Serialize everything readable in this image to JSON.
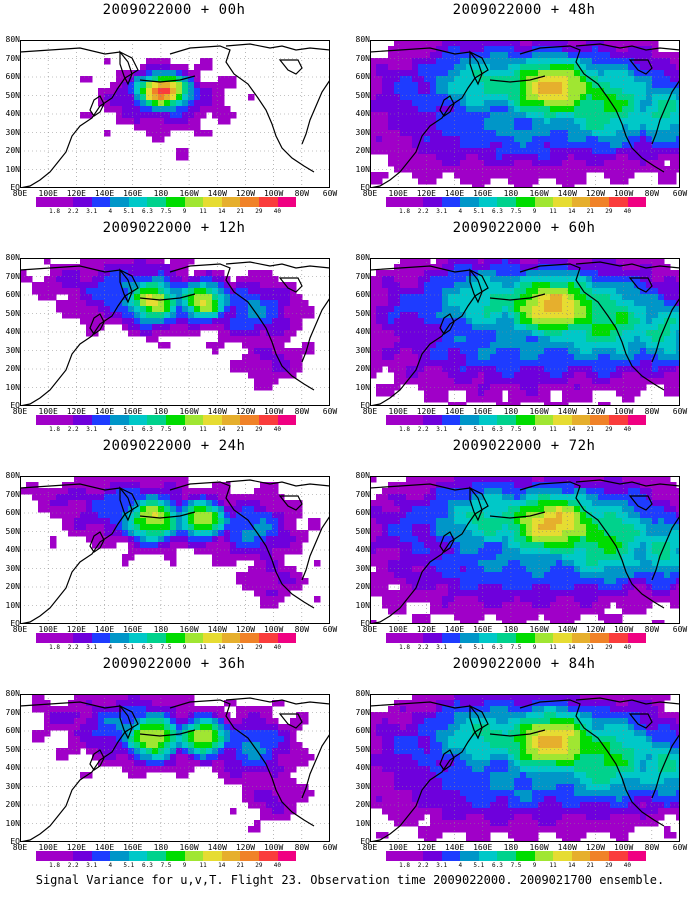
{
  "caption": "Signal Variance for u,v,T. Flight 23. Observation time 2009022000. 2009021700 ensemble.",
  "y_labels": [
    "80N",
    "70N",
    "60N",
    "50N",
    "40N",
    "30N",
    "20N",
    "10N",
    "EQ"
  ],
  "x_labels": [
    "80E",
    "100E",
    "120E",
    "140E",
    "160E",
    "180",
    "160W",
    "140W",
    "120W",
    "100W",
    "80W",
    "60W"
  ],
  "legend": {
    "labels": [
      "1.8",
      "2.2",
      "3.1",
      "4",
      "5.1",
      "6.3",
      "7.5",
      "9",
      "11",
      "14",
      "21",
      "29",
      "40"
    ],
    "colors": [
      "#a000c8",
      "#6e00dc",
      "#1e3cff",
      "#0096c8",
      "#00c8c8",
      "#00d28c",
      "#00dc00",
      "#a0e632",
      "#e6dc32",
      "#e6af2d",
      "#f08228",
      "#fa3c3c",
      "#f00082"
    ]
  },
  "colors": {
    "land_outline": "#000000",
    "grid": "#888888"
  },
  "panels": [
    {
      "title": "2009022000 + 00h",
      "coverage": "low"
    },
    {
      "title": "2009022000 + 48h",
      "coverage": "high"
    },
    {
      "title": "2009022000 + 12h",
      "coverage": "medium"
    },
    {
      "title": "2009022000 + 60h",
      "coverage": "high"
    },
    {
      "title": "2009022000 + 24h",
      "coverage": "medium"
    },
    {
      "title": "2009022000 + 72h",
      "coverage": "high"
    },
    {
      "title": "2009022000 + 36h",
      "coverage": "medium"
    },
    {
      "title": "2009022000 + 84h",
      "coverage": "high"
    }
  ]
}
